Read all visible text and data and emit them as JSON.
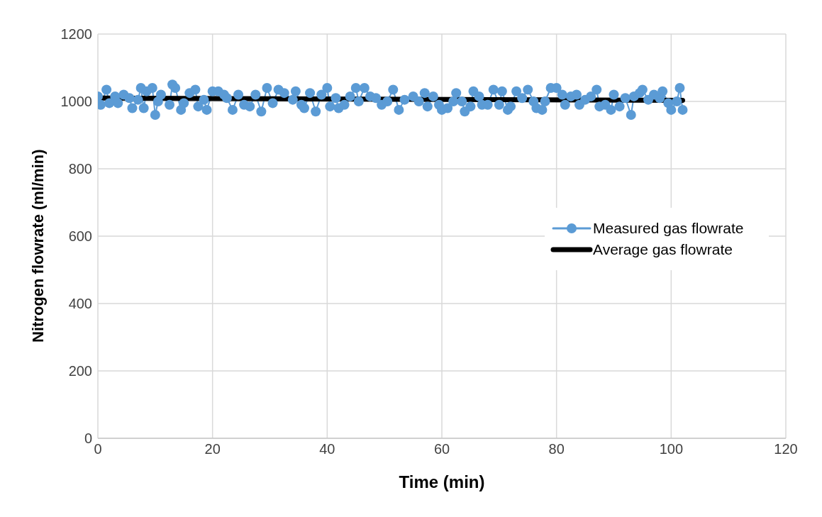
{
  "chart_data": {
    "type": "line",
    "xlabel": "Time (min)",
    "ylabel": "Nitrogen flowrate (ml/min)",
    "xlim": [
      0,
      120
    ],
    "xticks": [
      0,
      20,
      40,
      60,
      80,
      100,
      120
    ],
    "ylim": [
      0,
      1200
    ],
    "yticks": [
      0,
      200,
      400,
      600,
      800,
      1000,
      1200
    ],
    "grid": true,
    "legend": "right",
    "series": [
      {
        "name": "Measured gas flowrate",
        "color": "#5b9bd5",
        "marker": "circle",
        "x": [
          0,
          0.5,
          1.5,
          2,
          3,
          3.5,
          4.5,
          5.5,
          6,
          7,
          7.5,
          8,
          8.5,
          9.5,
          10,
          10.5,
          11,
          12.5,
          13,
          13.5,
          14.5,
          15,
          16,
          17,
          17.5,
          18.5,
          19,
          20,
          21,
          22,
          22.5,
          23.5,
          24.5,
          25.5,
          26.5,
          27.5,
          28.5,
          29.5,
          30.5,
          31.5,
          32.5,
          34,
          34.5,
          35.5,
          36,
          37,
          38,
          39,
          40,
          40.5,
          41.5,
          42,
          43,
          44,
          45,
          45.5,
          46.5,
          47.5,
          48.5,
          49.5,
          50.5,
          51.5,
          52.5,
          53.5,
          55,
          56,
          57,
          57.5,
          58.5,
          59.5,
          60,
          61,
          62,
          62.5,
          63.5,
          64,
          65,
          65.5,
          66.5,
          67,
          68,
          69,
          70,
          70.5,
          71.5,
          72,
          73,
          74,
          75,
          76,
          76.5,
          77.5,
          78,
          79,
          80,
          81,
          81.5,
          82.5,
          83.5,
          84,
          85,
          86,
          87,
          87.5,
          88.5,
          89.5,
          90,
          91,
          92,
          93,
          93.5,
          94.5,
          95,
          96,
          97,
          98,
          98.5,
          99.5,
          100,
          101,
          101.5,
          102
        ],
        "values": [
          1015,
          990,
          1035,
          995,
          1015,
          995,
          1020,
          1010,
          980,
          1005,
          1040,
          980,
          1030,
          1040,
          960,
          1000,
          1020,
          990,
          1050,
          1040,
          975,
          995,
          1025,
          1035,
          985,
          1005,
          975,
          1030,
          1030,
          1020,
          1010,
          975,
          1020,
          990,
          985,
          1020,
          970,
          1040,
          995,
          1035,
          1025,
          1005,
          1030,
          990,
          980,
          1025,
          970,
          1020,
          1040,
          985,
          1010,
          980,
          990,
          1015,
          1040,
          1000,
          1040,
          1015,
          1010,
          990,
          1000,
          1035,
          975,
          1005,
          1015,
          1000,
          1025,
          985,
          1015,
          990,
          975,
          980,
          1000,
          1025,
          1000,
          970,
          985,
          1030,
          1015,
          990,
          990,
          1035,
          990,
          1030,
          975,
          985,
          1030,
          1010,
          1035,
          1000,
          980,
          975,
          1000,
          1040,
          1040,
          1020,
          990,
          1015,
          1020,
          990,
          1005,
          1015,
          1035,
          985,
          990,
          975,
          1020,
          985,
          1010,
          960,
          1015,
          1025,
          1035,
          1005,
          1020,
          1010,
          1030,
          995,
          975,
          1000,
          1040,
          975
        ]
      },
      {
        "name": "Average gas flowrate",
        "color": "#000000",
        "marker": "none",
        "x": [
          0,
          102
        ],
        "values": [
          1010,
          1003
        ]
      }
    ]
  }
}
